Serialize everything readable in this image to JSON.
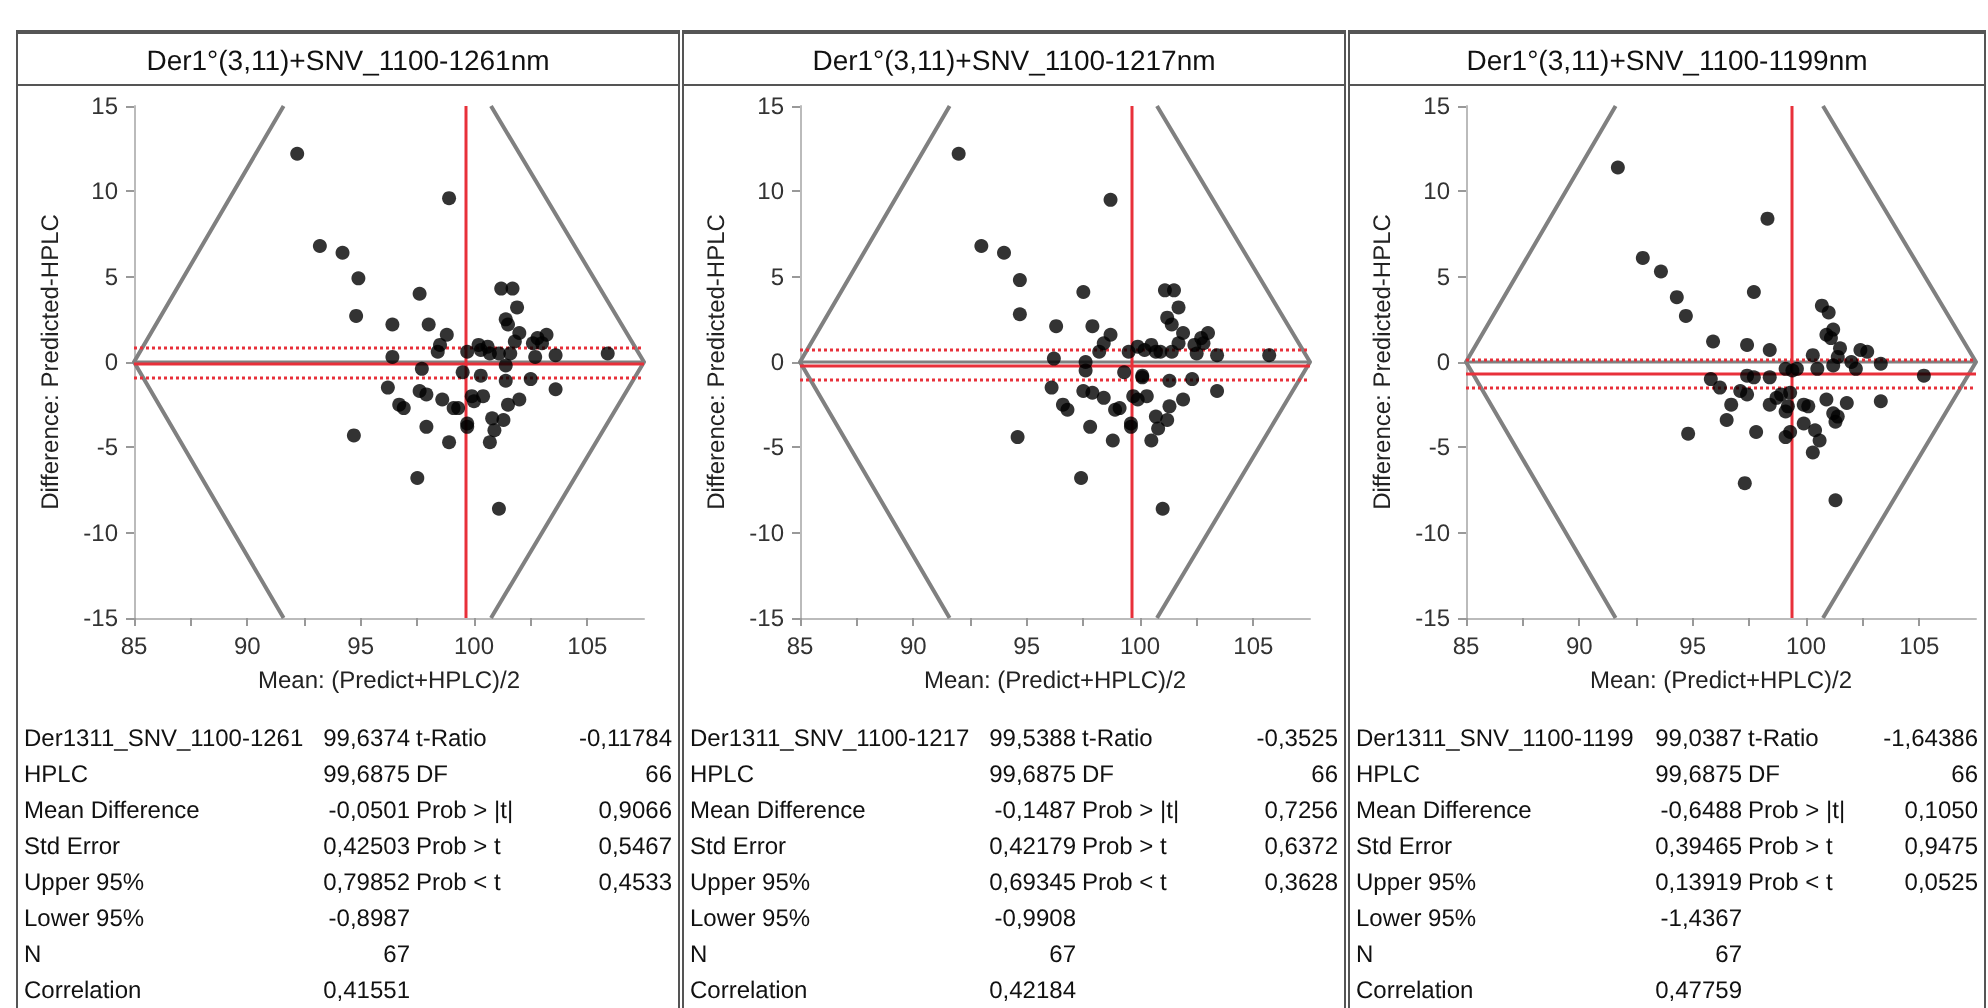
{
  "chart_data": [
    {
      "type": "scatter",
      "title": "Der1°(3,11)+SNV_1100-1261nm",
      "xlabel": "Mean: (Predict+HPLC)/2",
      "ylabel": "Difference: Predicted-HPLC",
      "marker": "circle",
      "xlim": [
        85,
        107.5
      ],
      "ylim": [
        -15,
        15
      ],
      "xticks": [
        85,
        {
          "value": 87.5,
          "label": null
        },
        90,
        {
          "value": 92.5,
          "label": null
        },
        95,
        {
          "value": 97.5,
          "label": null
        },
        100,
        {
          "value": 102.5,
          "label": null
        },
        105
      ],
      "yticks": [
        -15,
        -10,
        -5,
        0,
        5,
        10,
        15
      ],
      "series": [
        {
          "type": "line",
          "marker": "none",
          "color": "#808080",
          "x": [
            91.6,
            85,
            91.6
          ],
          "values": [
            15,
            0,
            -15
          ]
        },
        {
          "type": "line",
          "marker": "none",
          "color": "#808080",
          "x": [
            100.75,
            107.5,
            100.75
          ],
          "values": [
            15,
            0,
            -15
          ]
        },
        {
          "color": "#000000",
          "x": [
            92.2,
            98.9,
            93.2,
            94.2,
            94.9,
            97.6,
            101.2,
            101.7,
            101.9,
            94.8,
            96.4,
            98.0,
            101.4,
            101.5,
            102.0,
            98.8,
            101.8,
            98.5,
            98.4,
            99.7,
            100.2,
            100.6,
            100.3,
            100.7,
            101.1,
            101.6,
            102.6,
            102.8,
            103.2,
            103.0,
            103.6,
            102.7,
            105.9,
            96.4,
            97.7,
            99.5,
            100.3,
            101.4,
            102.5,
            103.6,
            96.2,
            97.6,
            97.9,
            98.6,
            99.1,
            99.3,
            99.9,
            100.0,
            100.4,
            102.0,
            101.5,
            96.7,
            96.9,
            97.9,
            99.7,
            99.7,
            100.8,
            101.3,
            100.9,
            100.7,
            98.9,
            94.7,
            97.5,
            101.1,
            101.4
          ],
          "values": [
            12.2,
            9.6,
            6.8,
            6.4,
            4.9,
            4.0,
            4.3,
            4.3,
            3.2,
            2.7,
            2.2,
            2.2,
            2.5,
            2.2,
            1.7,
            1.6,
            1.2,
            1.0,
            0.6,
            0.6,
            1.0,
            0.9,
            0.7,
            0.5,
            0.5,
            0.5,
            1.1,
            1.4,
            1.6,
            1.1,
            0.4,
            0.3,
            0.5,
            0.3,
            -0.4,
            -0.6,
            -0.8,
            -1.1,
            -1.0,
            -1.6,
            -1.5,
            -1.7,
            -1.9,
            -2.2,
            -2.7,
            -2.7,
            -2.0,
            -2.3,
            -2.0,
            -2.2,
            -2.5,
            -2.5,
            -2.7,
            -3.8,
            -3.6,
            -3.8,
            -3.3,
            -3.4,
            -4.0,
            -4.7,
            -4.7,
            -4.3,
            -6.8,
            -8.6,
            -0.2
          ]
        }
      ],
      "ref_lines": [
        {
          "axis": "y",
          "value": 0,
          "color": "#808080"
        },
        {
          "axis": "y",
          "value": -0.0501,
          "color": "#e8303a"
        },
        {
          "axis": "y",
          "value": 0.79852,
          "color": "#e8303a",
          "line_style": "dotted"
        },
        {
          "axis": "y",
          "value": -0.8987,
          "color": "#e8303a",
          "line_style": "dotted"
        },
        {
          "axis": "x",
          "value": 99.66,
          "color": "#e8303a"
        }
      ],
      "annotations": [
        "Der1311_SNV_1100-1261",
        "99,6374",
        "t-Ratio",
        "-0,11784",
        "HPLC",
        "99,6875",
        "DF",
        "66",
        "Mean Difference",
        "-0,0501",
        "Prob > |t|",
        "0,9066",
        "Std Error",
        "0,42503",
        "Prob > t",
        "0,5467",
        "Upper 95%",
        "0,79852",
        "Prob < t",
        "0,4533",
        "Lower 95%",
        "-0,8987",
        "N",
        "67",
        "Correlation",
        "0,41551"
      ]
    },
    {
      "type": "scatter",
      "title": "Der1°(3,11)+SNV_1100-1217nm",
      "xlabel": "Mean: (Predict+HPLC)/2",
      "ylabel": "Difference: Predicted-HPLC",
      "marker": "circle",
      "xlim": [
        85,
        107.5
      ],
      "ylim": [
        -15,
        15
      ],
      "xticks": [
        85,
        {
          "value": 87.5,
          "label": null
        },
        90,
        {
          "value": 92.5,
          "label": null
        },
        95,
        {
          "value": 97.5,
          "label": null
        },
        100,
        {
          "value": 102.5,
          "label": null
        },
        105
      ],
      "yticks": [
        -15,
        -10,
        -5,
        0,
        5,
        10,
        15
      ],
      "series": [
        {
          "type": "line",
          "marker": "none",
          "color": "#808080",
          "x": [
            91.6,
            85,
            91.6
          ],
          "values": [
            15,
            0,
            -15
          ]
        },
        {
          "type": "line",
          "marker": "none",
          "color": "#808080",
          "x": [
            100.75,
            107.5,
            100.75
          ],
          "values": [
            15,
            0,
            -15
          ]
        },
        {
          "color": "#000000",
          "x": [
            92.0,
            98.7,
            93.0,
            94.0,
            94.7,
            97.5,
            101.1,
            101.5,
            101.7,
            94.7,
            96.3,
            97.9,
            101.2,
            101.4,
            101.9,
            98.7,
            101.7,
            98.4,
            98.2,
            99.5,
            99.9,
            100.5,
            100.2,
            100.7,
            100.9,
            101.4,
            102.4,
            102.7,
            103.0,
            102.8,
            103.4,
            102.5,
            105.7,
            96.2,
            97.6,
            99.3,
            100.1,
            101.3,
            102.3,
            103.4,
            96.1,
            97.5,
            97.9,
            98.4,
            98.9,
            99.1,
            99.7,
            99.9,
            100.3,
            101.9,
            101.3,
            96.6,
            96.8,
            97.8,
            99.6,
            99.6,
            100.7,
            101.2,
            100.8,
            100.5,
            98.8,
            94.6,
            97.4,
            101.0,
            100.1,
            97.6
          ],
          "values": [
            12.2,
            9.5,
            6.8,
            6.4,
            4.8,
            4.1,
            4.2,
            4.2,
            3.2,
            2.8,
            2.1,
            2.1,
            2.6,
            2.2,
            1.7,
            1.6,
            1.1,
            1.1,
            0.6,
            0.6,
            0.9,
            1.0,
            0.7,
            0.6,
            0.6,
            0.6,
            1.0,
            1.4,
            1.7,
            1.1,
            0.4,
            0.5,
            0.4,
            0.2,
            -0.5,
            -0.6,
            -0.8,
            -1.1,
            -1.0,
            -1.7,
            -1.5,
            -1.7,
            -1.8,
            -2.1,
            -2.8,
            -2.7,
            -2.0,
            -2.2,
            -2.0,
            -2.2,
            -2.6,
            -2.5,
            -2.8,
            -3.8,
            -3.6,
            -3.8,
            -3.2,
            -3.4,
            -3.9,
            -4.6,
            -4.6,
            -4.4,
            -6.8,
            -8.6,
            -0.9,
            0.0
          ]
        }
      ],
      "ref_lines": [
        {
          "axis": "y",
          "value": 0,
          "color": "#808080"
        },
        {
          "axis": "y",
          "value": -0.1487,
          "color": "#e8303a"
        },
        {
          "axis": "y",
          "value": 0.69345,
          "color": "#e8303a",
          "line_style": "dotted"
        },
        {
          "axis": "y",
          "value": -0.9908,
          "color": "#e8303a",
          "line_style": "dotted"
        },
        {
          "axis": "x",
          "value": 99.6,
          "color": "#e8303a"
        }
      ],
      "annotations": [
        "Der1311_SNV_1100-1217",
        "99,5388",
        "t-Ratio",
        "-0,3525",
        "HPLC",
        "99,6875",
        "DF",
        "66",
        "Mean Difference",
        "-0,1487",
        "Prob > |t|",
        "0,7256",
        "Std Error",
        "0,42179",
        "Prob > t",
        "0,6372",
        "Upper 95%",
        "0,69345",
        "Prob < t",
        "0,3628",
        "Lower 95%",
        "-0,9908",
        "N",
        "67",
        "Correlation",
        "0,42184"
      ]
    },
    {
      "type": "scatter",
      "title": "Der1°(3,11)+SNV_1100-1199nm",
      "xlabel": "Mean: (Predict+HPLC)/2",
      "ylabel": "Difference: Predicted-HPLC",
      "marker": "circle",
      "xlim": [
        85,
        107.5
      ],
      "ylim": [
        -15,
        15
      ],
      "xticks": [
        85,
        {
          "value": 87.5,
          "label": null
        },
        90,
        {
          "value": 92.5,
          "label": null
        },
        95,
        {
          "value": 97.5,
          "label": null
        },
        100,
        {
          "value": 102.5,
          "label": null
        },
        105
      ],
      "yticks": [
        -15,
        -10,
        -5,
        0,
        5,
        10,
        15
      ],
      "series": [
        {
          "type": "line",
          "marker": "none",
          "color": "#808080",
          "x": [
            91.6,
            85,
            91.6
          ],
          "values": [
            15,
            0,
            -15
          ]
        },
        {
          "type": "line",
          "marker": "none",
          "color": "#808080",
          "x": [
            100.75,
            107.5,
            100.75
          ],
          "values": [
            15,
            0,
            -15
          ]
        },
        {
          "color": "#000000",
          "x": [
            91.7,
            98.3,
            92.8,
            93.6,
            94.3,
            94.7,
            97.7,
            100.7,
            101.0,
            101.2,
            100.9,
            101.1,
            95.9,
            97.4,
            98.4,
            101.5,
            102.4,
            102.7,
            100.3,
            101.4,
            102.0,
            103.3,
            101.2,
            100.5,
            99.1,
            99.6,
            102.2,
            97.4,
            97.7,
            95.8,
            98.4,
            105.2,
            96.2,
            97.1,
            97.4,
            98.9,
            96.7,
            98.4,
            98.7,
            99.2,
            99.1,
            99.9,
            100.1,
            100.9,
            101.8,
            101.2,
            101.4,
            101.3,
            103.3,
            96.5,
            99.9,
            99.3,
            99.1,
            100.4,
            100.6,
            100.3,
            97.8,
            94.8,
            97.3,
            101.3,
            99.4,
            99.3
          ],
          "values": [
            11.4,
            8.4,
            6.1,
            5.3,
            3.8,
            2.7,
            4.1,
            3.3,
            2.9,
            1.9,
            1.6,
            1.4,
            1.2,
            1.0,
            0.7,
            0.8,
            0.7,
            0.6,
            0.4,
            0.3,
            0.0,
            -0.1,
            -0.2,
            -0.4,
            -0.4,
            -0.4,
            -0.4,
            -0.8,
            -0.9,
            -1.0,
            -0.9,
            -0.8,
            -1.5,
            -1.7,
            -1.9,
            -1.9,
            -2.5,
            -2.5,
            -2.1,
            -2.6,
            -2.9,
            -2.5,
            -2.6,
            -2.2,
            -2.4,
            -3.0,
            -3.2,
            -3.5,
            -2.3,
            -3.4,
            -3.6,
            -4.1,
            -4.4,
            -4.0,
            -4.6,
            -5.3,
            -4.1,
            -4.2,
            -7.1,
            -8.1,
            -0.5,
            -1.8
          ]
        }
      ],
      "ref_lines": [
        {
          "axis": "y",
          "value": 0,
          "color": "#808080"
        },
        {
          "axis": "y",
          "value": -0.6488,
          "color": "#e8303a"
        },
        {
          "axis": "y",
          "value": 0.13919,
          "color": "#e8303a",
          "line_style": "dotted"
        },
        {
          "axis": "y",
          "value": -1.4367,
          "color": "#e8303a",
          "line_style": "dotted"
        },
        {
          "axis": "x",
          "value": 99.36,
          "color": "#e8303a"
        }
      ],
      "annotations": [
        "Der1311_SNV_1100-1199",
        "99,0387",
        "t-Ratio",
        "-1,64386",
        "HPLC",
        "99,6875",
        "DF",
        "66",
        "Mean Difference",
        "-0,6488",
        "Prob > |t|",
        "0,1050",
        "Std Error",
        "0,39465",
        "Prob > t",
        "0,9475",
        "Upper 95%",
        "0,13919",
        "Prob < t",
        "0,0525",
        "Lower 95%",
        "-1,4367",
        "N",
        "67",
        "Correlation",
        "0,47759"
      ]
    }
  ]
}
